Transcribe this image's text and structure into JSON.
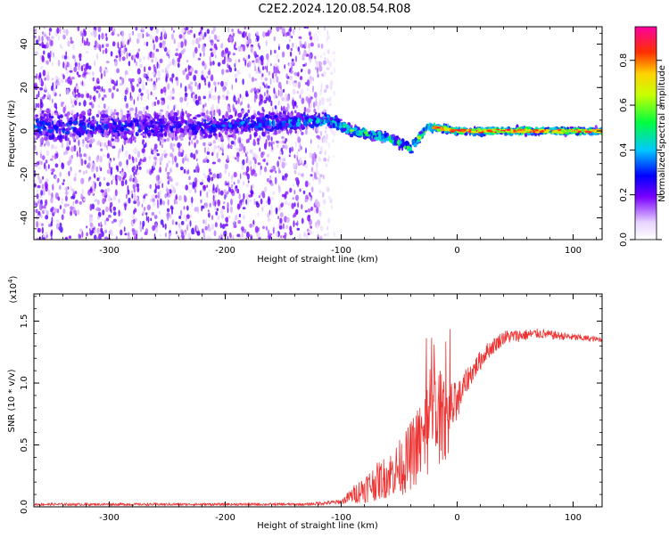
{
  "title": "C2E2.2024.120.08.54.R08",
  "chart_data": [
    {
      "type": "heatmap",
      "xlabel": "Height of straight line (km)",
      "ylabel": "Frequency (Hz)",
      "xlim": [
        -365,
        125
      ],
      "ylim": [
        -50,
        48
      ],
      "xticks": [
        -300,
        -200,
        -100,
        0,
        100
      ],
      "yticks": [
        -40,
        -20,
        0,
        20,
        40
      ],
      "colorbar": {
        "label": "Normalized spectral amplitude",
        "range": [
          0.0,
          0.95
        ],
        "ticks": [
          0.0,
          0.2,
          0.4,
          0.6,
          0.8
        ],
        "tick_labels": [
          "0.0",
          "0.2",
          "0.4",
          "0.6",
          "0.8"
        ],
        "colormap": "rainbow"
      },
      "signal_band": [
        {
          "x": -365,
          "center": 2,
          "width": 10,
          "amp": 0.28
        },
        {
          "x": -250,
          "center": 2,
          "width": 9,
          "amp": 0.24
        },
        {
          "x": -150,
          "center": 4,
          "width": 6,
          "amp": 0.32
        },
        {
          "x": -110,
          "center": 5,
          "width": 4,
          "amp": 0.38
        },
        {
          "x": -90,
          "center": 0,
          "width": 3,
          "amp": 0.45
        },
        {
          "x": -60,
          "center": -3,
          "width": 3,
          "amp": 0.45
        },
        {
          "x": -40,
          "center": -8,
          "width": 3,
          "amp": 0.45
        },
        {
          "x": -25,
          "center": 2,
          "width": 2,
          "amp": 0.55
        },
        {
          "x": 0,
          "center": 0,
          "width": 2,
          "amp": 0.55
        },
        {
          "x": 50,
          "center": 0,
          "width": 2,
          "amp": 0.55
        },
        {
          "x": 125,
          "center": 0,
          "width": 2,
          "amp": 0.5
        }
      ],
      "noise_extent_x": [
        -365,
        -100
      ]
    },
    {
      "type": "line",
      "xlabel": "Height of straight line (km)",
      "ylabel": "SNR (10 * v/v)",
      "y_multiplier": "(x10",
      "y_multiplier_exp": "4",
      "y_multiplier_close": ")",
      "xlim": [
        -365,
        125
      ],
      "ylim": [
        0,
        1.72
      ],
      "xticks": [
        -300,
        -200,
        -100,
        0,
        100
      ],
      "yticks": [
        0.0,
        0.5,
        1.0,
        1.5
      ],
      "ytick_labels": [
        "0.0",
        "0.5",
        "1.0",
        "1.5"
      ],
      "color": "#ee3333",
      "profile": [
        {
          "x": -365,
          "mean": 0.02,
          "noise": 0.01
        },
        {
          "x": -130,
          "mean": 0.02,
          "noise": 0.01
        },
        {
          "x": -100,
          "mean": 0.04,
          "noise": 0.02
        },
        {
          "x": -80,
          "mean": 0.15,
          "noise": 0.12
        },
        {
          "x": -60,
          "mean": 0.25,
          "noise": 0.18
        },
        {
          "x": -45,
          "mean": 0.35,
          "noise": 0.25
        },
        {
          "x": -30,
          "mean": 0.55,
          "noise": 0.35
        },
        {
          "x": -20,
          "mean": 0.75,
          "noise": 0.5
        },
        {
          "x": -10,
          "mean": 0.7,
          "noise": 0.35
        },
        {
          "x": 0,
          "mean": 0.85,
          "noise": 0.15
        },
        {
          "x": 10,
          "mean": 1.05,
          "noise": 0.1
        },
        {
          "x": 25,
          "mean": 1.25,
          "noise": 0.07
        },
        {
          "x": 40,
          "mean": 1.37,
          "noise": 0.06
        },
        {
          "x": 70,
          "mean": 1.4,
          "noise": 0.04
        },
        {
          "x": 100,
          "mean": 1.37,
          "noise": 0.03
        },
        {
          "x": 125,
          "mean": 1.35,
          "noise": 0.02
        }
      ]
    }
  ]
}
